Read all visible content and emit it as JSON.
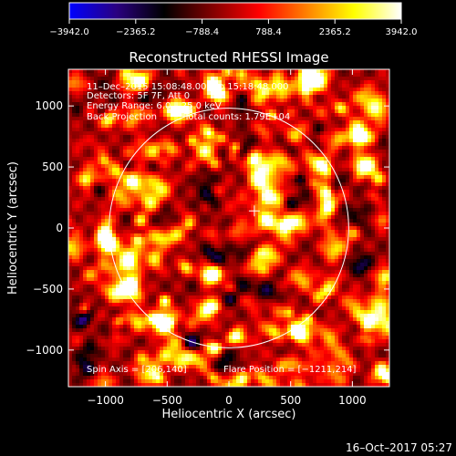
{
  "chart_data": {
    "type": "heatmap",
    "title": "Reconstructed RHESSI Image",
    "xlabel": "Heliocentric X (arcsec)",
    "ylabel": "Heliocentric Y (arcsec)",
    "xlim": [
      -1300,
      1300
    ],
    "ylim": [
      -1300,
      1300
    ],
    "x_ticks": [
      -1000,
      -500,
      0,
      500,
      1000
    ],
    "y_ticks": [
      -1000,
      -500,
      0,
      500,
      1000
    ],
    "x_tick_labels": [
      "−1000",
      "−500",
      "0",
      "500",
      "1000"
    ],
    "y_tick_labels": [
      "−1000",
      "−500",
      "0",
      "500",
      "1000"
    ],
    "colorbar": {
      "range": [
        -3942.0,
        3942.0
      ],
      "ticks": [
        -3942.0,
        -2365.2,
        -788.4,
        788.4,
        2365.2,
        3942.0
      ],
      "tick_labels": [
        "−3942.0",
        "−2365.2",
        "−788.4",
        "788.4",
        "2365.2",
        "3942.0"
      ],
      "colormap": [
        "#0000ff",
        "#2a0080",
        "#000000",
        "#800000",
        "#ff0000",
        "#ff8000",
        "#ffff00",
        "#ffffff"
      ]
    },
    "annotations": {
      "time_range": "11–Dec–2015 15:08:48.000 to 15:18:48.000",
      "detectors": "Detectors: 5F 7F, Att 0",
      "energy_range": "Energy Range: 6.0 – 25.0 keV",
      "method": "Back Projection",
      "total_counts": "Total counts: 1.79E+04",
      "spin_axis": "Spin Axis = [206,140]",
      "flare_position": "Flare Position = [−1211,214]"
    },
    "solar_limb_radius_arcsec": 970,
    "marker_position_arcsec": [
      206,
      140
    ],
    "grid": false,
    "legend": "none"
  },
  "footer": {
    "timestamp": "16–Oct–2017 05:27"
  }
}
